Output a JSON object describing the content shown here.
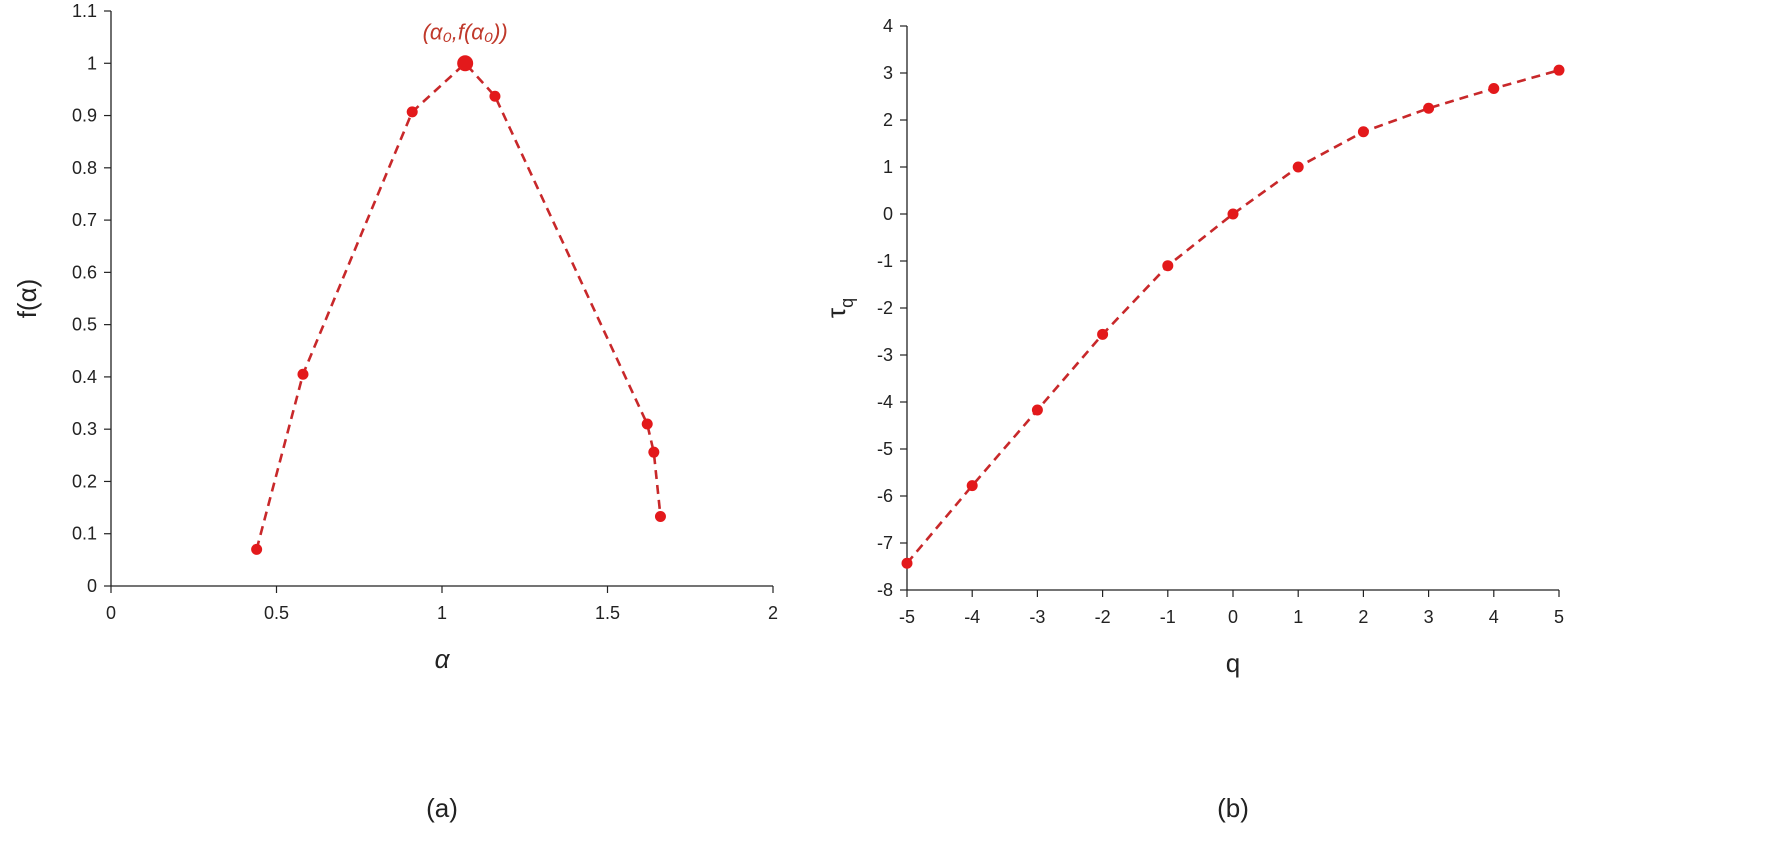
{
  "colors": {
    "series": "#e3191b",
    "line": "#c8282a",
    "annotation": "#c0392b",
    "axis": "#222222"
  },
  "chart_data": [
    {
      "type": "line",
      "panel_label": "(a)",
      "xlabel": "α",
      "ylabel": "f(α)",
      "xlim": [
        0,
        2
      ],
      "ylim": [
        0,
        1.1
      ],
      "x_ticks": [
        "0",
        "0.5",
        "1",
        "1.5",
        "2"
      ],
      "y_ticks": [
        "0",
        "0.1",
        "0.2",
        "0.3",
        "0.4",
        "0.5",
        "0.6",
        "0.7",
        "0.8",
        "0.9",
        "1",
        "1.1"
      ],
      "grid": false,
      "series": [
        {
          "x": [
            0.44,
            0.58,
            0.91,
            1.07,
            1.16,
            1.62,
            1.64,
            1.66
          ],
          "y": [
            0.07,
            0.405,
            0.907,
            1.0,
            0.937,
            0.31,
            0.256,
            0.133
          ]
        }
      ],
      "annotation": {
        "text": "(α₀,f(α₀))",
        "x": 1.07,
        "y": 1.0
      }
    },
    {
      "type": "line",
      "panel_label": "(b)",
      "xlabel": "q",
      "ylabel": "τq",
      "xlim": [
        -5,
        5
      ],
      "ylim": [
        -8,
        4
      ],
      "x_ticks": [
        "-5",
        "-4",
        "-3",
        "-2",
        "-1",
        "0",
        "1",
        "2",
        "3",
        "4",
        "5"
      ],
      "y_ticks": [
        "-8",
        "-7",
        "-6",
        "-5",
        "-4",
        "-3",
        "-2",
        "-1",
        "0",
        "1",
        "2",
        "3",
        "4"
      ],
      "grid": false,
      "series": [
        {
          "x": [
            -5,
            -4,
            -3,
            -2,
            -1,
            0,
            1,
            2,
            3,
            4,
            5
          ],
          "y": [
            -7.43,
            -5.78,
            -4.17,
            -2.56,
            -1.1,
            0.0,
            1.0,
            1.75,
            2.25,
            2.67,
            3.06
          ]
        }
      ]
    }
  ]
}
